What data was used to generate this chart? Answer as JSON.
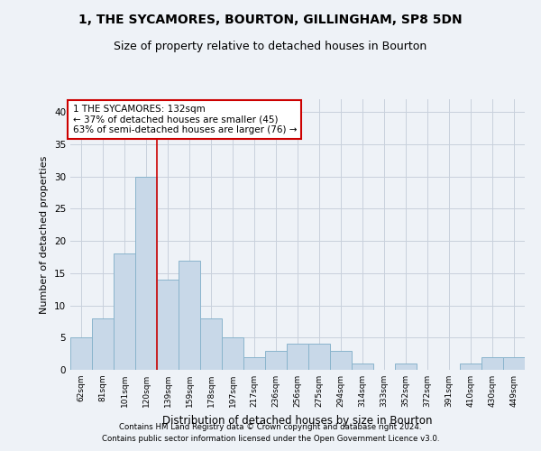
{
  "title1": "1, THE SYCAMORES, BOURTON, GILLINGHAM, SP8 5DN",
  "title2": "Size of property relative to detached houses in Bourton",
  "xlabel": "Distribution of detached houses by size in Bourton",
  "ylabel": "Number of detached properties",
  "footer1": "Contains HM Land Registry data © Crown copyright and database right 2024.",
  "footer2": "Contains public sector information licensed under the Open Government Licence v3.0.",
  "categories": [
    "62sqm",
    "81sqm",
    "101sqm",
    "120sqm",
    "139sqm",
    "159sqm",
    "178sqm",
    "197sqm",
    "217sqm",
    "236sqm",
    "256sqm",
    "275sqm",
    "294sqm",
    "314sqm",
    "333sqm",
    "352sqm",
    "372sqm",
    "391sqm",
    "410sqm",
    "430sqm",
    "449sqm"
  ],
  "values": [
    5,
    8,
    18,
    30,
    14,
    17,
    8,
    5,
    2,
    3,
    4,
    4,
    3,
    1,
    0,
    1,
    0,
    0,
    1,
    2,
    2
  ],
  "bar_color": "#c8d8e8",
  "bar_edge_color": "#8ab4cc",
  "grid_color": "#c8d0dc",
  "vline_x": 3.5,
  "vline_color": "#cc0000",
  "annotation_text": "1 THE SYCAMORES: 132sqm\n← 37% of detached houses are smaller (45)\n63% of semi-detached houses are larger (76) →",
  "annotation_box_color": "#ffffff",
  "annotation_box_edge": "#cc0000",
  "ylim": [
    0,
    42
  ],
  "yticks": [
    0,
    5,
    10,
    15,
    20,
    25,
    30,
    35,
    40
  ],
  "background_color": "#eef2f7"
}
